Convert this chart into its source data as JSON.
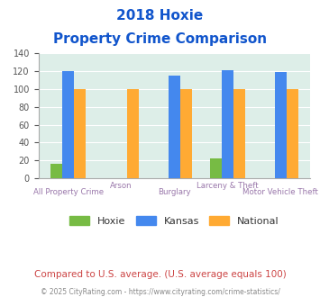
{
  "title_line1": "2018 Hoxie",
  "title_line2": "Property Crime Comparison",
  "categories": [
    "All Property Crime",
    "Arson",
    "Burglary",
    "Larceny & Theft",
    "Motor Vehicle Theft"
  ],
  "hoxie": [
    16,
    0,
    0,
    22,
    0
  ],
  "kansas": [
    120,
    0,
    115,
    121,
    119
  ],
  "national": [
    100,
    100,
    100,
    100,
    100
  ],
  "hoxie_color": "#77bb44",
  "kansas_color": "#4488ee",
  "national_color": "#ffaa33",
  "bg_plot": "#ddeee8",
  "title_color": "#1155cc",
  "xlabel_color": "#9977aa",
  "ylabel_ticks_color": "#555555",
  "ylim": [
    0,
    140
  ],
  "yticks": [
    0,
    20,
    40,
    60,
    80,
    100,
    120,
    140
  ],
  "footnote": "Compared to U.S. average. (U.S. average equals 100)",
  "copyright": "© 2025 CityRating.com - https://www.cityrating.com/crime-statistics/",
  "footnote_color": "#cc4444",
  "copyright_color": "#888888",
  "legend_labels": [
    "Hoxie",
    "Kansas",
    "National"
  ],
  "bar_width": 0.22
}
